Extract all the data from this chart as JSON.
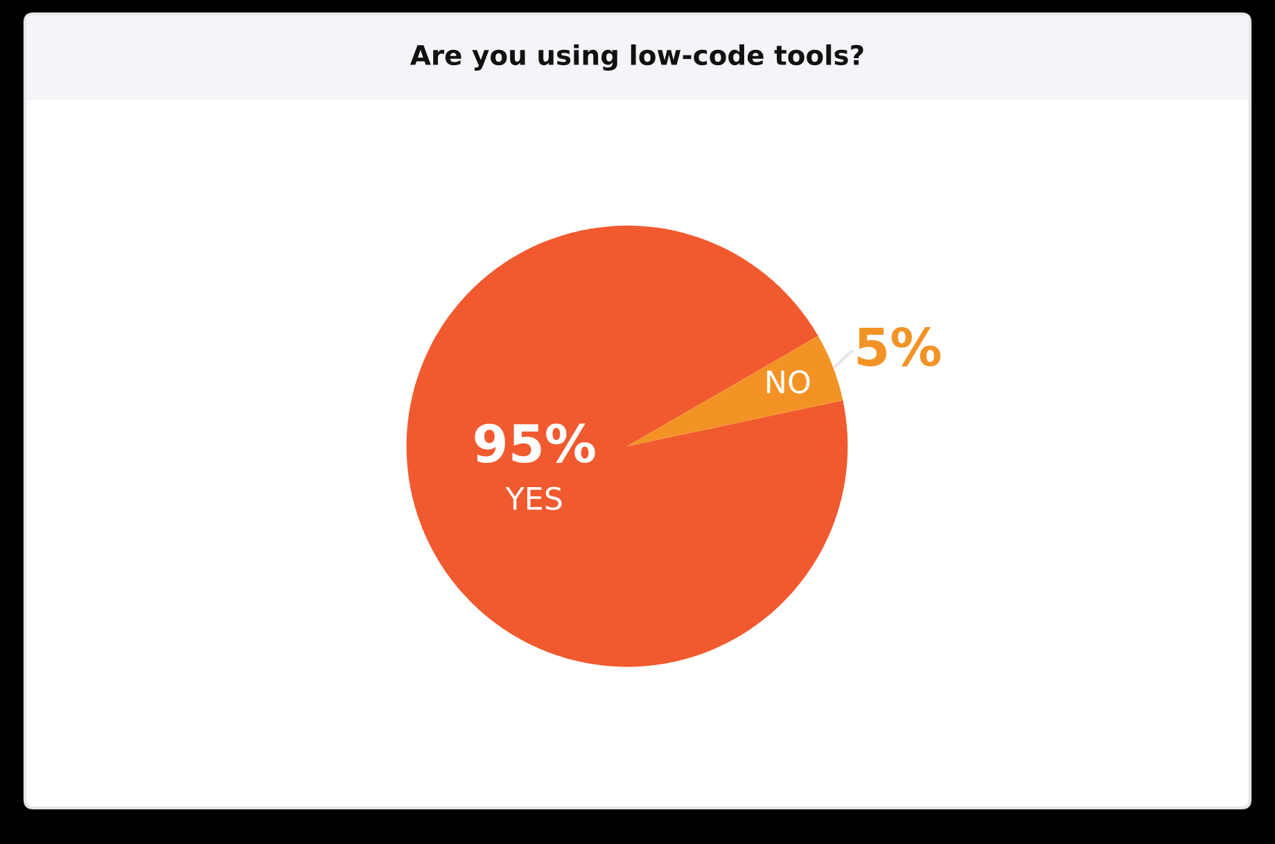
{
  "chart_data": {
    "type": "pie",
    "title": "Are you using low-code tools?",
    "categories": [
      "YES",
      "NO"
    ],
    "values": [
      95,
      5
    ],
    "colors": [
      "#f15a2f",
      "#f39325"
    ],
    "value_labels": [
      "95%",
      "5%"
    ],
    "legend": false
  }
}
